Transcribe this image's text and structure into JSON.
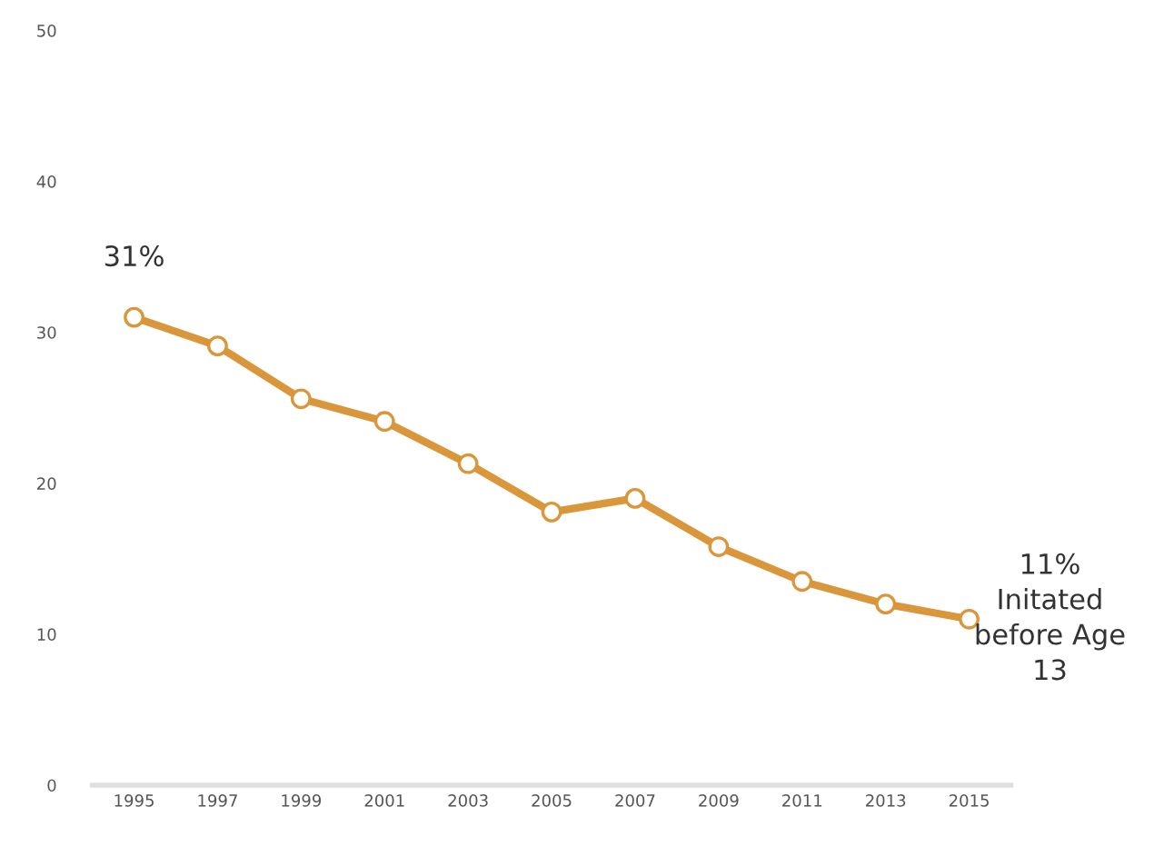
{
  "chart_data": {
    "type": "line",
    "categories": [
      "1995",
      "1997",
      "1999",
      "2001",
      "2003",
      "2005",
      "2007",
      "2009",
      "2011",
      "2013",
      "2015"
    ],
    "series": [
      {
        "color": "#d9963a",
        "values": [
          31,
          29.1,
          25.6,
          24.1,
          21.3,
          18.1,
          19.0,
          15.8,
          13.5,
          12.0,
          11
        ]
      }
    ],
    "ylim": [
      0,
      50
    ],
    "yticks": [
      0,
      10,
      20,
      30,
      40,
      50
    ],
    "grid": false,
    "legend": false,
    "marker": "circle",
    "line_style": "solid",
    "annotations": [
      {
        "text": "31%",
        "x": "1995",
        "y": 31
      },
      {
        "text": "11%\nInitated\nbefore Age\n13",
        "x": "2015",
        "y": 11
      }
    ]
  }
}
